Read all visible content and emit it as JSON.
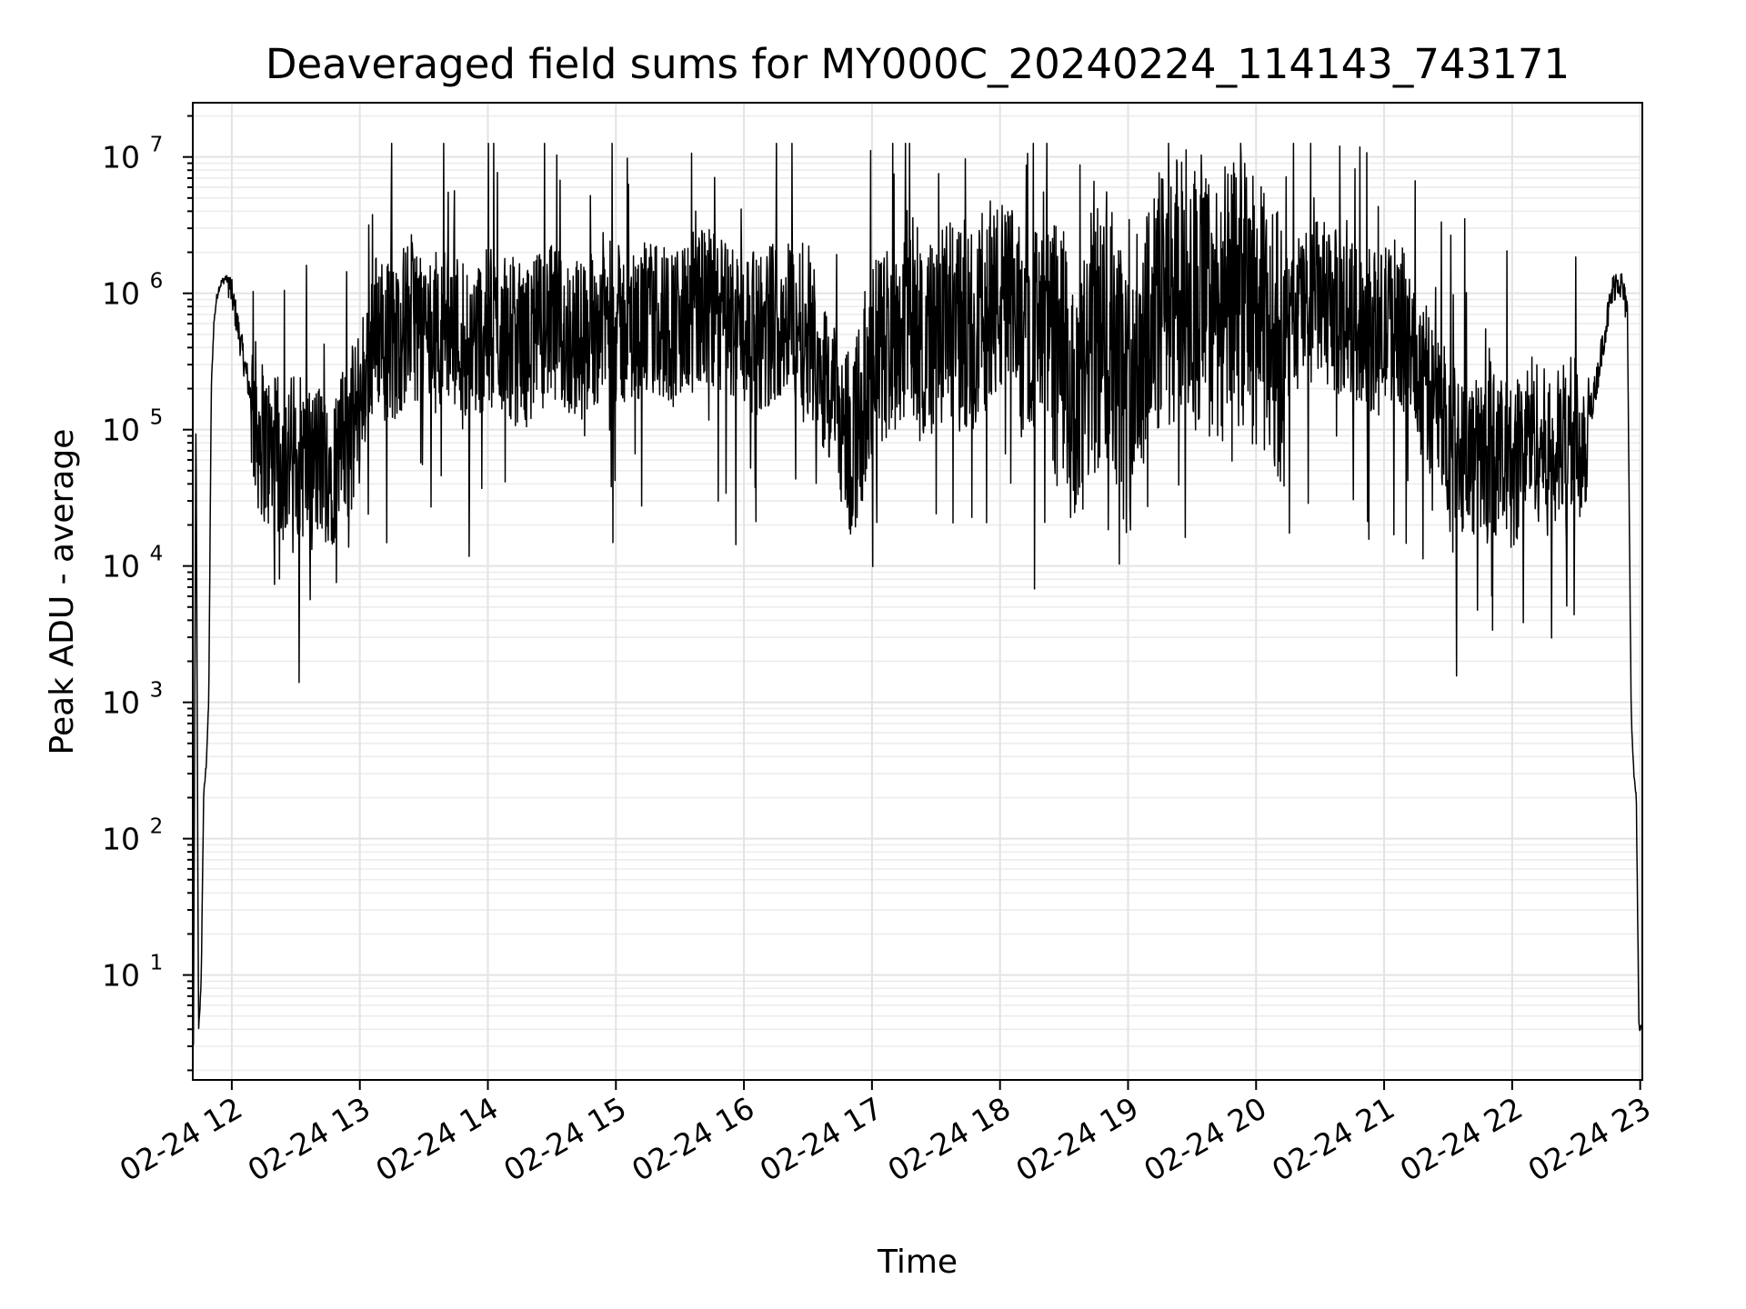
{
  "chart_data": {
    "type": "line",
    "title": "Deaveraged field sums for MY000C_20240224_114143_743171",
    "xlabel": "Time",
    "ylabel": "Peak ADU - average",
    "yscale": "log",
    "xlim": [
      "02-24 11:41:43",
      "02-24 23:01:00"
    ],
    "ylim": [
      1.7,
      25000000
    ],
    "grid": true,
    "grid_color": "#e3e3e3",
    "line_color": "#000000",
    "x_ticks": [
      "02-24 12",
      "02-24 13",
      "02-24 14",
      "02-24 15",
      "02-24 16",
      "02-24 17",
      "02-24 18",
      "02-24 19",
      "02-24 20",
      "02-24 21",
      "02-24 22",
      "02-24 23"
    ],
    "y_ticks": [
      {
        "base": "10",
        "exp": "1"
      },
      {
        "base": "10",
        "exp": "2"
      },
      {
        "base": "10",
        "exp": "3"
      },
      {
        "base": "10",
        "exp": "4"
      },
      {
        "base": "10",
        "exp": "5"
      },
      {
        "base": "10",
        "exp": "6"
      },
      {
        "base": "10",
        "exp": "7"
      }
    ],
    "series": [
      {
        "x_hours": [
          11.7,
          11.72,
          11.74,
          11.76,
          11.78,
          11.8,
          11.82,
          11.84,
          11.86,
          11.88,
          11.9,
          11.92,
          11.95,
          11.98,
          12.03,
          12.1,
          12.2,
          12.3,
          12.4,
          12.5,
          12.6,
          12.7,
          12.8,
          12.9,
          13.0,
          13.05,
          13.1,
          13.18,
          13.25,
          13.4,
          13.55,
          13.7,
          13.85,
          14.0,
          14.15,
          14.3,
          14.45,
          14.6,
          14.75,
          14.9,
          15.05,
          15.2,
          15.35,
          15.5,
          15.65,
          15.8,
          15.95,
          16.1,
          16.25,
          16.4,
          16.55,
          16.7,
          16.85,
          17.0,
          17.15,
          17.3,
          17.45,
          17.6,
          17.75,
          17.9,
          18.05,
          18.2,
          18.35,
          18.5,
          18.6,
          18.7,
          18.85,
          19.0,
          19.15,
          19.3,
          19.45,
          19.6,
          19.75,
          19.9,
          20.05,
          20.2,
          20.35,
          20.5,
          20.65,
          20.8,
          20.95,
          21.1,
          21.25,
          21.4,
          21.55,
          21.7,
          21.85,
          22.0,
          22.15,
          22.3,
          22.45,
          22.55,
          22.65,
          22.72,
          22.78,
          22.82,
          22.86,
          22.9,
          22.93,
          22.95,
          22.97,
          22.99,
          23.01
        ],
        "y": [
          3,
          150000,
          4,
          8,
          200,
          350,
          1000,
          200000,
          600000,
          900000,
          1100000,
          1200000,
          1300000,
          1200000,
          700000,
          300000,
          100000,
          65000,
          60000,
          70000,
          55000,
          60000,
          55000,
          80000,
          150000,
          300000,
          500000,
          600000,
          400000,
          700000,
          500000,
          600000,
          450000,
          550000,
          500000,
          400000,
          600000,
          500000,
          450000,
          700000,
          550000,
          600000,
          650000,
          550000,
          800000,
          700000,
          600000,
          500000,
          650000,
          700000,
          450000,
          150000,
          80000,
          300000,
          500000,
          700000,
          450000,
          600000,
          500000,
          800000,
          900000,
          500000,
          600000,
          300000,
          80000,
          400000,
          500000,
          150000,
          700000,
          900000,
          1200000,
          800000,
          900000,
          1000000,
          600000,
          400000,
          800000,
          900000,
          700000,
          600000,
          500000,
          700000,
          300000,
          150000,
          80000,
          60000,
          70000,
          50000,
          100000,
          60000,
          90000,
          80000,
          200000,
          500000,
          1000000,
          1300000,
          1100000,
          700000,
          800,
          300,
          200,
          4,
          4
        ]
      }
    ]
  }
}
